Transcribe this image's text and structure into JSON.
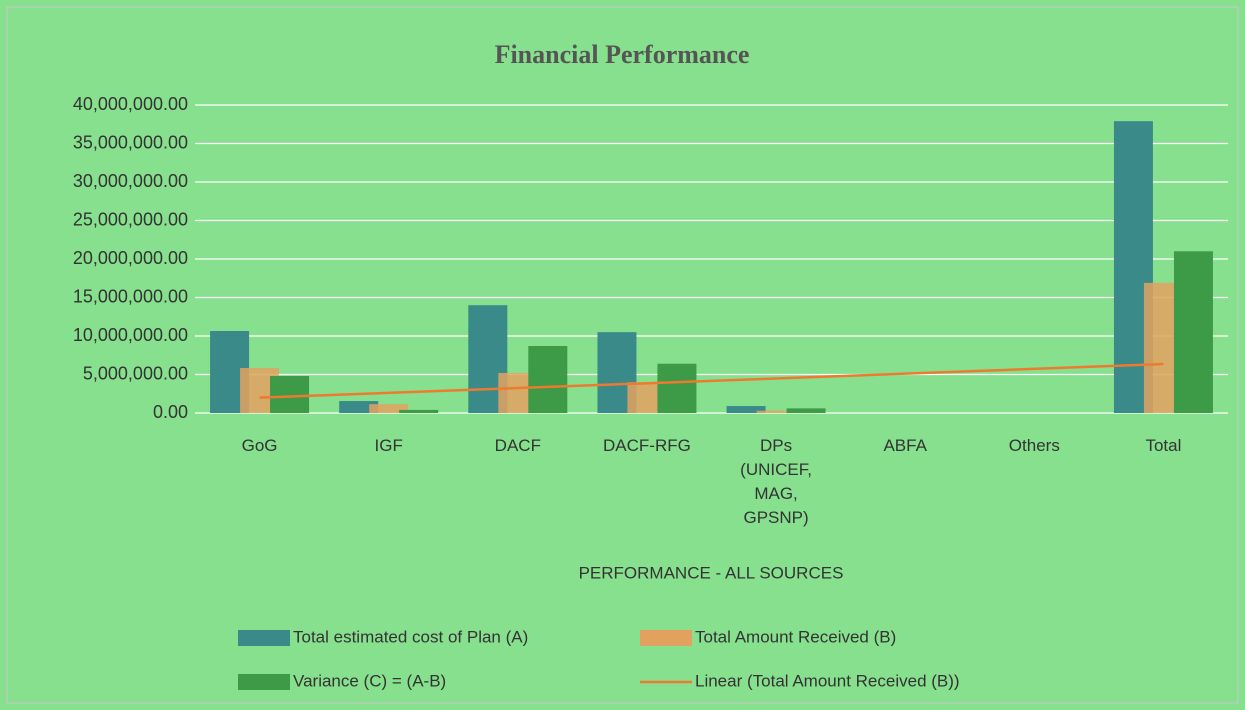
{
  "chart_data": {
    "type": "bar",
    "title": "Financial Performance",
    "x_label": "PERFORMANCE - ALL SOURCES",
    "categories": [
      "GoG",
      "IGF",
      "DACF",
      "DACF-RFG",
      "DPs (UNICEF, MAG, GPSNP)",
      "ABFA",
      "Others",
      "Total"
    ],
    "series": [
      {
        "name": "Total estimated cost of Plan (A)",
        "color": "#3a8a8a",
        "values": [
          10650000,
          1550000,
          14000000,
          10500000,
          900000,
          0,
          0,
          37900000
        ]
      },
      {
        "name": "Total Amount Received (B)",
        "color": "#e3a160",
        "values": [
          5840000,
          1150000,
          5200000,
          4000000,
          300000,
          0,
          0,
          16900000
        ]
      },
      {
        "name": "Variance (C) = (A-B)",
        "color": "#3d9a46",
        "values": [
          4800000,
          400000,
          8700000,
          6400000,
          600000,
          0,
          0,
          21000000
        ]
      }
    ],
    "trendline": {
      "name": "Linear (Total Amount Received (B))",
      "color": "#ee7a30"
    },
    "ylim": [
      0,
      40000000
    ],
    "yticks": [
      {
        "value": 0,
        "label": "0.00"
      },
      {
        "value": 5000000,
        "label": "5,000,000.00"
      },
      {
        "value": 10000000,
        "label": "10,000,000.00"
      },
      {
        "value": 15000000,
        "label": "15,000,000.00"
      },
      {
        "value": 20000000,
        "label": "20,000,000.00"
      },
      {
        "value": 25000000,
        "label": "25,000,000.00"
      },
      {
        "value": 30000000,
        "label": "30,000,000.00"
      },
      {
        "value": 35000000,
        "label": "35,000,000.00"
      },
      {
        "value": 40000000,
        "label": "40,000,000.00"
      }
    ],
    "grid": true,
    "legend": "bottom"
  }
}
